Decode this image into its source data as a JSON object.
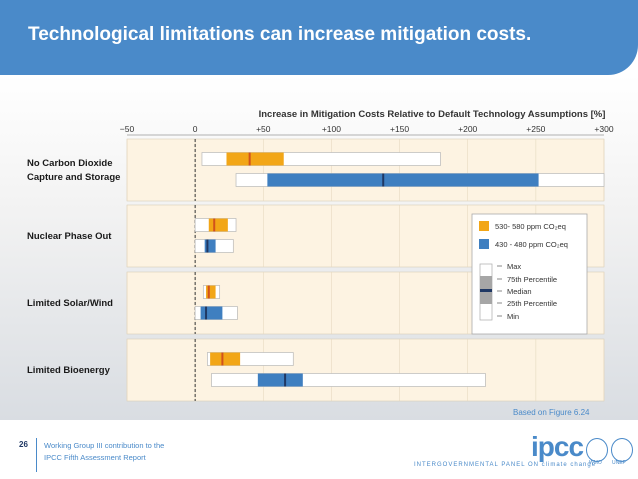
{
  "slide": {
    "title": "Technological limitations can increase mitigation costs.",
    "source_note": "Based on Figure 6.24",
    "page_number": "26",
    "footer_line1": "Working Group III contribution to the",
    "footer_line2": "IPCC Fifth Assessment Report",
    "logo_text": "ipcc",
    "logo_subtext": "INTERGOVERNMENTAL PANEL ON climate change",
    "emblem_left_label": "WMO",
    "emblem_right_label": "UNEP"
  },
  "colors": {
    "title_bar": "#4a8ac9",
    "orange": "#f2a617",
    "blue": "#3f7fc0",
    "median_orange": "#d2511b",
    "median_blue": "#1f3864",
    "panel_bg": "#fdf3e2"
  },
  "chart_data": {
    "type": "boxplot",
    "title": "Increase in Mitigation Costs Relative to Default Technology Assumptions [%]",
    "xlim": [
      -50,
      300
    ],
    "xticks": [
      "−50",
      "0",
      "+50",
      "+100",
      "+150",
      "+200",
      "+250",
      "+300"
    ],
    "xtick_values": [
      -50,
      0,
      50,
      100,
      150,
      200,
      250,
      300
    ],
    "series": [
      {
        "name": "530- 580 ppm CO₂eq",
        "color": "orange"
      },
      {
        "name": "430 - 480 ppm CO₂eq",
        "color": "blue"
      }
    ],
    "categories": [
      {
        "label_lines": [
          "No Carbon Dioxide",
          "Capture and Storage"
        ],
        "boxes": [
          {
            "series": 0,
            "min": 5,
            "q1": 23,
            "median": 40,
            "q3": 65,
            "max": 180
          },
          {
            "series": 1,
            "min": 30,
            "q1": 53,
            "median": 138,
            "q3": 252,
            "max": 300
          }
        ]
      },
      {
        "label_lines": [
          "Nuclear Phase Out"
        ],
        "boxes": [
          {
            "series": 0,
            "min": 0,
            "q1": 10,
            "median": 14,
            "q3": 24,
            "max": 30
          },
          {
            "series": 1,
            "min": 0,
            "q1": 7,
            "median": 9,
            "q3": 15,
            "max": 28
          }
        ]
      },
      {
        "label_lines": [
          "Limited Solar/Wind"
        ],
        "boxes": [
          {
            "series": 0,
            "min": 6,
            "q1": 8,
            "median": 10,
            "q3": 15,
            "max": 18
          },
          {
            "series": 1,
            "min": 0,
            "q1": 4,
            "median": 8,
            "q3": 20,
            "max": 31
          }
        ]
      },
      {
        "label_lines": [
          "Limited Bioenergy"
        ],
        "boxes": [
          {
            "series": 0,
            "min": 9,
            "q1": 11,
            "median": 20,
            "q3": 33,
            "max": 72
          },
          {
            "series": 1,
            "min": 12,
            "q1": 46,
            "median": 66,
            "q3": 79,
            "max": 213
          }
        ]
      }
    ],
    "legend_key": [
      "Max",
      "75th Percentile",
      "Median",
      "25th Percentile",
      "Min"
    ],
    "legend_key_sup": "th",
    "legend_position": "right"
  }
}
